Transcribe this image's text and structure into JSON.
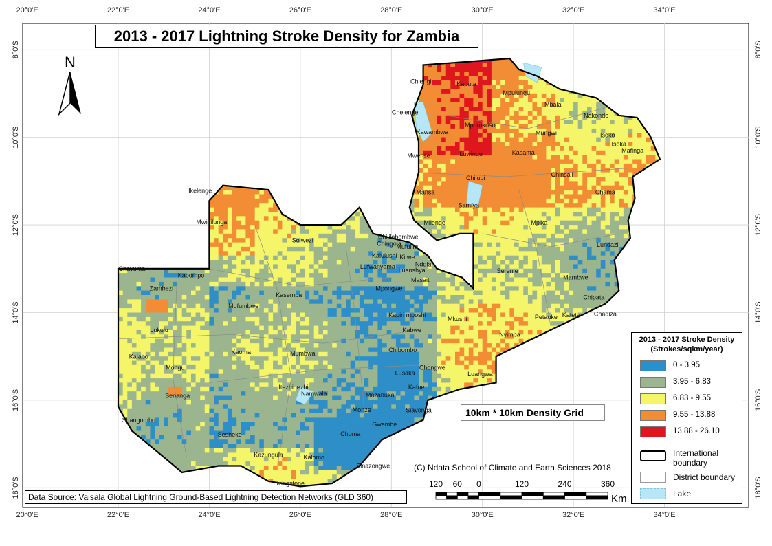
{
  "title": "2013 - 2017 Lightning Stroke Density for Zambia",
  "north_arrow": {
    "letter": "N",
    "icon": "north-arrow-icon"
  },
  "axes": {
    "lon_ticks": [
      "20°0'E",
      "22°0'E",
      "24°0'E",
      "26°0'E",
      "28°0'E",
      "30°0'E",
      "32°0'E",
      "34°0'E"
    ],
    "lat_ticks": [
      "8°0'S",
      "10°0'S",
      "12°0'S",
      "14°0'S",
      "16°0'S",
      "18°0'S"
    ],
    "lon_values": [
      20,
      22,
      24,
      26,
      28,
      30,
      32,
      34
    ],
    "lat_values": [
      8,
      10,
      12,
      14,
      16,
      18
    ],
    "lon_range": [
      19.9,
      35.85
    ],
    "lat_range": [
      7.4,
      18.45
    ]
  },
  "places": [
    {
      "name": "Chiengi",
      "lon": 28.65,
      "lat": 8.77
    },
    {
      "name": "Kaputa",
      "lon": 29.65,
      "lat": 8.83
    },
    {
      "name": "Mpulungu",
      "lon": 30.75,
      "lat": 9.03
    },
    {
      "name": "Mbala",
      "lon": 31.55,
      "lat": 9.3
    },
    {
      "name": "Nakonde",
      "lon": 32.5,
      "lat": 9.55
    },
    {
      "name": "Chelenge",
      "lon": 28.3,
      "lat": 9.48
    },
    {
      "name": "Mporokoso",
      "lon": 29.95,
      "lat": 9.77
    },
    {
      "name": "Kawambwa",
      "lon": 28.9,
      "lat": 9.93
    },
    {
      "name": "Mungwi",
      "lon": 31.4,
      "lat": 9.95
    },
    {
      "name": "Isoko",
      "lon": 32.75,
      "lat": 10.0
    },
    {
      "name": "Mafinga",
      "lon": 33.3,
      "lat": 10.35
    },
    {
      "name": "Mwense",
      "lon": 28.6,
      "lat": 10.47
    },
    {
      "name": "Luwingu",
      "lon": 29.75,
      "lat": 10.43
    },
    {
      "name": "Kasama",
      "lon": 30.9,
      "lat": 10.4
    },
    {
      "name": "Chilubi",
      "lon": 29.85,
      "lat": 10.98
    },
    {
      "name": "Chinsali",
      "lon": 31.75,
      "lat": 10.9
    },
    {
      "name": "Isoka",
      "lon": 33.0,
      "lat": 10.2
    },
    {
      "name": "Chama",
      "lon": 32.7,
      "lat": 11.3
    },
    {
      "name": "Mansa",
      "lon": 28.75,
      "lat": 11.3
    },
    {
      "name": "Samfya",
      "lon": 29.7,
      "lat": 11.6
    },
    {
      "name": "Ikelenge",
      "lon": 23.8,
      "lat": 11.27
    },
    {
      "name": "Mwinilunga",
      "lon": 24.05,
      "lat": 11.98
    },
    {
      "name": "Milenge",
      "lon": 28.95,
      "lat": 12.0
    },
    {
      "name": "Mpika",
      "lon": 31.25,
      "lat": 12.0
    },
    {
      "name": "Solwezi",
      "lon": 26.05,
      "lat": 12.4
    },
    {
      "name": "Chililabombwe",
      "lon": 28.15,
      "lat": 12.32
    },
    {
      "name": "Chingola",
      "lon": 27.95,
      "lat": 12.48
    },
    {
      "name": "Mufulira",
      "lon": 28.35,
      "lat": 12.55
    },
    {
      "name": "Lundazi",
      "lon": 32.75,
      "lat": 12.5
    },
    {
      "name": "Kalulushi",
      "lon": 27.85,
      "lat": 12.75
    },
    {
      "name": "Kitwe",
      "lon": 28.35,
      "lat": 12.78
    },
    {
      "name": "Ndola",
      "lon": 28.7,
      "lat": 12.95
    },
    {
      "name": "Chavuma",
      "lon": 22.3,
      "lat": 13.05
    },
    {
      "name": "Lufwanyama",
      "lon": 27.7,
      "lat": 13.0
    },
    {
      "name": "Luanshya",
      "lon": 28.45,
      "lat": 13.08
    },
    {
      "name": "Masaiti",
      "lon": 28.65,
      "lat": 13.3
    },
    {
      "name": "Serenje",
      "lon": 30.55,
      "lat": 13.1
    },
    {
      "name": "Kabompo",
      "lon": 23.6,
      "lat": 13.2
    },
    {
      "name": "Mambwe",
      "lon": 32.05,
      "lat": 13.25
    },
    {
      "name": "Zambezi",
      "lon": 22.95,
      "lat": 13.5
    },
    {
      "name": "Mpongwe",
      "lon": 27.95,
      "lat": 13.5
    },
    {
      "name": "Kasempa",
      "lon": 25.75,
      "lat": 13.65
    },
    {
      "name": "Mufumbwe",
      "lon": 24.75,
      "lat": 13.9
    },
    {
      "name": "Chipata",
      "lon": 32.45,
      "lat": 13.7
    },
    {
      "name": "Kapiri mposhi",
      "lon": 28.35,
      "lat": 14.1
    },
    {
      "name": "Mkushi",
      "lon": 29.45,
      "lat": 14.2
    },
    {
      "name": "Petauke",
      "lon": 31.4,
      "lat": 14.15
    },
    {
      "name": "Katete",
      "lon": 31.95,
      "lat": 14.1
    },
    {
      "name": "Chadiza",
      "lon": 32.7,
      "lat": 14.08
    },
    {
      "name": "Nyimba",
      "lon": 30.6,
      "lat": 14.55
    },
    {
      "name": "Lukulu",
      "lon": 22.9,
      "lat": 14.45
    },
    {
      "name": "Kabwe",
      "lon": 28.45,
      "lat": 14.45
    },
    {
      "name": "Kalabo",
      "lon": 22.45,
      "lat": 15.05
    },
    {
      "name": "Kaoma",
      "lon": 24.7,
      "lat": 14.95
    },
    {
      "name": "Chibombo",
      "lon": 28.25,
      "lat": 14.9
    },
    {
      "name": "Mumbwa",
      "lon": 26.05,
      "lat": 14.98
    },
    {
      "name": "Mongu",
      "lon": 23.25,
      "lat": 15.3
    },
    {
      "name": "Chongwe",
      "lon": 28.9,
      "lat": 15.3
    },
    {
      "name": "Lusaka",
      "lon": 28.3,
      "lat": 15.43
    },
    {
      "name": "Luangwa",
      "lon": 29.95,
      "lat": 15.45
    },
    {
      "name": "Itezhi tezhi",
      "lon": 25.85,
      "lat": 15.75
    },
    {
      "name": "Kafue",
      "lon": 28.55,
      "lat": 15.75
    },
    {
      "name": "Senanga",
      "lon": 23.3,
      "lat": 15.95
    },
    {
      "name": "Namwala",
      "lon": 26.3,
      "lat": 15.9
    },
    {
      "name": "Mazabuka",
      "lon": 27.75,
      "lat": 15.93
    },
    {
      "name": "Siavonga",
      "lon": 28.6,
      "lat": 16.28
    },
    {
      "name": "Shangombo",
      "lon": 22.45,
      "lat": 16.5
    },
    {
      "name": "Monze",
      "lon": 27.35,
      "lat": 16.27
    },
    {
      "name": "Sesheke",
      "lon": 24.45,
      "lat": 16.83
    },
    {
      "name": "Choma",
      "lon": 27.1,
      "lat": 16.82
    },
    {
      "name": "Gwembe",
      "lon": 27.85,
      "lat": 16.6
    },
    {
      "name": "Kazungula",
      "lon": 25.3,
      "lat": 17.3
    },
    {
      "name": "Kalomo",
      "lon": 26.3,
      "lat": 17.35
    },
    {
      "name": "Sinazongwe",
      "lon": 27.6,
      "lat": 17.55
    },
    {
      "name": "Livingstone",
      "lon": 25.75,
      "lat": 17.95
    }
  ],
  "grid_label": "10km * 10km  Density Grid",
  "legend": {
    "title": "2013 - 2017 Stroke Density",
    "subtitle": "(Strokes/sqkm/year)",
    "classes": [
      {
        "label": "0 - 3.95",
        "color": "#2e8fc8"
      },
      {
        "label": "3.95 - 6.83",
        "color": "#9bb58f"
      },
      {
        "label": "6.83 - 9.55",
        "color": "#f4f568"
      },
      {
        "label": "9.55 - 13.88",
        "color": "#f28c35"
      },
      {
        "label": "13.88 - 26.10",
        "color": "#e0161e"
      }
    ],
    "international_boundary": "International boundary",
    "district_boundary": "District boundary",
    "lake": "Lake",
    "lake_color": "#b7e6f7"
  },
  "copyright": "(C) Ndata School of Climate and Earth Sciences 2018",
  "source": "Data Source: Vaisala Global Lightning Ground-Based Lightning Detection Networks (GLD 360)",
  "scale": {
    "labels": [
      "120",
      "60",
      "0",
      "120",
      "240",
      "360"
    ],
    "values_km": [
      -120,
      -60,
      0,
      120,
      240,
      360
    ],
    "unit": "Km"
  }
}
